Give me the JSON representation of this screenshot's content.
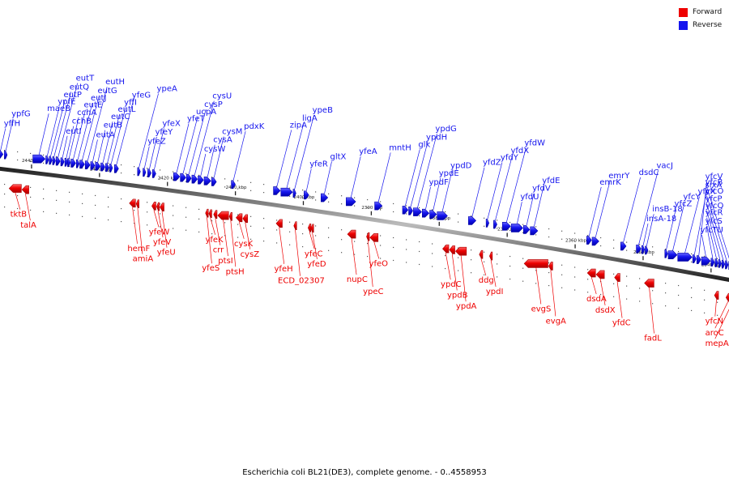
{
  "legend": {
    "forward": {
      "label": "Forward",
      "color": "#ee0000"
    },
    "reverse": {
      "label": "Reverse",
      "color": "#1515ee"
    }
  },
  "caption": "Escherichia coli BL21(DE3), complete genome. - 0..4558953",
  "scale": {
    "start_kbp": 2445,
    "end_kbp": 2337,
    "unit": "kbp"
  },
  "ticks": [
    {
      "kbp": 2440,
      "label": "2440 kbp"
    },
    {
      "kbp": 2430,
      "label": "2430 kbp"
    },
    {
      "kbp": 2420,
      "label": "2420 kbp"
    },
    {
      "kbp": 2410,
      "label": "2410 kbp"
    },
    {
      "kbp": 2400,
      "label": "2400 kbp"
    },
    {
      "kbp": 2390,
      "label": "2390 kbp"
    },
    {
      "kbp": 2380,
      "label": "2380 kbp"
    },
    {
      "kbp": 2370,
      "label": "2370 kbp"
    },
    {
      "kbp": 2360,
      "label": "2360 kbp"
    },
    {
      "kbp": 2350,
      "label": "2350 kbp"
    },
    {
      "kbp": 2340,
      "label": "2340 kbp"
    }
  ],
  "reverse_genes": [
    {
      "name": "yffH",
      "start": 2444.9,
      "end": 2444.2
    },
    {
      "name": "ypfG",
      "start": 2444.0,
      "end": 2443.6
    },
    {
      "name": "maeB",
      "start": 2439.8,
      "end": 2438.0
    },
    {
      "name": "ypfE",
      "start": 2437.9,
      "end": 2437.5
    },
    {
      "name": "eutP",
      "start": 2437.4,
      "end": 2437.0
    },
    {
      "name": "eutQ",
      "start": 2436.9,
      "end": 2436.5
    },
    {
      "name": "eutT",
      "start": 2436.4,
      "end": 2435.8
    },
    {
      "name": "eutI",
      "start": 2435.7,
      "end": 2435.2
    },
    {
      "name": "cchB",
      "start": 2435.1,
      "end": 2434.8
    },
    {
      "name": "cchA",
      "start": 2434.7,
      "end": 2434.3
    },
    {
      "name": "eutE",
      "start": 2434.2,
      "end": 2433.5
    },
    {
      "name": "eutJ",
      "start": 2433.4,
      "end": 2433.0
    },
    {
      "name": "eutG",
      "start": 2432.9,
      "end": 2432.2
    },
    {
      "name": "eutH",
      "start": 2432.1,
      "end": 2431.4
    },
    {
      "name": "eutA",
      "start": 2431.3,
      "end": 2430.7
    },
    {
      "name": "eutB",
      "start": 2430.6,
      "end": 2429.9
    },
    {
      "name": "eutC",
      "start": 2429.8,
      "end": 2429.2
    },
    {
      "name": "eutL",
      "start": 2429.1,
      "end": 2428.6
    },
    {
      "name": "yffI",
      "start": 2428.5,
      "end": 2428.1
    },
    {
      "name": "yfeG",
      "start": 2427.8,
      "end": 2427.2
    },
    {
      "name": "ypeA",
      "start": 2424.4,
      "end": 2424.0
    },
    {
      "name": "yfeZ",
      "start": 2423.6,
      "end": 2423.2
    },
    {
      "name": "yfeY",
      "start": 2422.9,
      "end": 2422.4
    },
    {
      "name": "yfeX",
      "start": 2422.2,
      "end": 2421.7
    },
    {
      "name": "yfeT",
      "start": 2419.1,
      "end": 2418.2
    },
    {
      "name": "ucpA",
      "start": 2418.1,
      "end": 2417.3
    },
    {
      "name": "cysP",
      "start": 2417.2,
      "end": 2416.5
    },
    {
      "name": "cysU",
      "start": 2416.4,
      "end": 2415.6
    },
    {
      "name": "cysW",
      "start": 2415.5,
      "end": 2414.7
    },
    {
      "name": "cysA",
      "start": 2414.6,
      "end": 2413.6
    },
    {
      "name": "cysM",
      "start": 2413.5,
      "end": 2412.8
    },
    {
      "name": "pdxK",
      "start": 2410.6,
      "end": 2410.0
    },
    {
      "name": "zipA",
      "start": 2404.4,
      "end": 2403.4
    },
    {
      "name": "ligA",
      "start": 2403.3,
      "end": 2401.6
    },
    {
      "name": "ypeB",
      "start": 2401.5,
      "end": 2401.1
    },
    {
      "name": "yfeR",
      "start": 2399.9,
      "end": 2399.2
    },
    {
      "name": "gltX",
      "start": 2397.4,
      "end": 2396.4
    },
    {
      "name": "yfeA",
      "start": 2393.7,
      "end": 2392.3
    },
    {
      "name": "mntH",
      "start": 2389.5,
      "end": 2388.4
    },
    {
      "name": "glk",
      "start": 2385.4,
      "end": 2384.6
    },
    {
      "name": "ypdH",
      "start": 2384.5,
      "end": 2383.9
    },
    {
      "name": "ypdG",
      "start": 2383.8,
      "end": 2382.6
    },
    {
      "name": "ypdF",
      "start": 2382.5,
      "end": 2381.5
    },
    {
      "name": "ypdE",
      "start": 2381.4,
      "end": 2380.4
    },
    {
      "name": "ypdD",
      "start": 2380.3,
      "end": 2378.8
    },
    {
      "name": "yfdZ",
      "start": 2375.7,
      "end": 2374.6
    },
    {
      "name": "yfdY",
      "start": 2373.1,
      "end": 2372.8
    },
    {
      "name": "yfdX",
      "start": 2372.0,
      "end": 2371.5
    },
    {
      "name": "yfdW",
      "start": 2370.7,
      "end": 2369.5
    },
    {
      "name": "yfdU",
      "start": 2369.4,
      "end": 2367.7
    },
    {
      "name": "yfdV",
      "start": 2367.6,
      "end": 2366.7
    },
    {
      "name": "yfdE",
      "start": 2366.6,
      "end": 2365.5
    },
    {
      "name": "emrK",
      "start": 2358.3,
      "end": 2357.6
    },
    {
      "name": "emrY",
      "start": 2357.5,
      "end": 2356.5
    },
    {
      "name": "dsdC",
      "start": 2353.3,
      "end": 2352.5
    },
    {
      "name": "vacJ",
      "start": 2351.0,
      "end": 2350.3
    },
    {
      "name": "insA-18",
      "start": 2350.2,
      "end": 2349.8
    },
    {
      "name": "insB-18",
      "start": 2349.7,
      "end": 2349.3
    },
    {
      "name": "yfcZ",
      "start": 2346.8,
      "end": 2346.4
    },
    {
      "name": "yfcY",
      "start": 2346.3,
      "end": 2345.0
    },
    {
      "name": "yfcX",
      "start": 2344.9,
      "end": 2342.8
    },
    {
      "name": "sixA",
      "start": 2342.7,
      "end": 2342.2
    },
    {
      "name": "yfcV",
      "start": 2342.1,
      "end": 2341.5
    },
    {
      "name": "yfcTU",
      "start": 2341.4,
      "end": 2340.1
    },
    {
      "name": "yfcS",
      "start": 2340.0,
      "end": 2339.5
    },
    {
      "name": "yfcR",
      "start": 2339.4,
      "end": 2339.0
    },
    {
      "name": "yfcQ",
      "start": 2338.9,
      "end": 2338.5
    },
    {
      "name": "yfcP",
      "start": 2338.4,
      "end": 2338.0
    },
    {
      "name": "yfcO",
      "start": 2337.9,
      "end": 2337.5
    },
    {
      "name": "yfcB",
      "start": 2337.4,
      "end": 2337.0
    }
  ],
  "forward_genes": [
    {
      "name": "tktB",
      "start": 2443.3,
      "end": 2441.5
    },
    {
      "name": "talA",
      "start": 2441.4,
      "end": 2440.4
    },
    {
      "name": "hemF",
      "start": 2425.6,
      "end": 2424.7
    },
    {
      "name": "amiA",
      "start": 2424.6,
      "end": 2424.3
    },
    {
      "name": "yfeW",
      "start": 2422.3,
      "end": 2421.7
    },
    {
      "name": "yfeV",
      "start": 2421.6,
      "end": 2421.2
    },
    {
      "name": "yfeU",
      "start": 2421.1,
      "end": 2420.5
    },
    {
      "name": "yfeS",
      "start": 2414.4,
      "end": 2414.1
    },
    {
      "name": "yfeK",
      "start": 2413.9,
      "end": 2413.6
    },
    {
      "name": "crr",
      "start": 2413.2,
      "end": 2412.7
    },
    {
      "name": "ptsI",
      "start": 2412.6,
      "end": 2411.0
    },
    {
      "name": "ptsH",
      "start": 2410.9,
      "end": 2410.6
    },
    {
      "name": "cysK",
      "start": 2409.9,
      "end": 2409.0
    },
    {
      "name": "cysZ",
      "start": 2408.9,
      "end": 2408.2
    },
    {
      "name": "yfeH",
      "start": 2404.0,
      "end": 2403.1
    },
    {
      "name": "ECD_02307",
      "start": 2401.4,
      "end": 2401.0
    },
    {
      "name": "yfeC",
      "start": 2399.3,
      "end": 2399.0
    },
    {
      "name": "yfeD",
      "start": 2398.9,
      "end": 2398.5
    },
    {
      "name": "nupC",
      "start": 2393.5,
      "end": 2392.3
    },
    {
      "name": "ypeC",
      "start": 2390.7,
      "end": 2390.3
    },
    {
      "name": "yfeO",
      "start": 2390.2,
      "end": 2389.0
    },
    {
      "name": "ypdC",
      "start": 2379.5,
      "end": 2378.6
    },
    {
      "name": "ypdB",
      "start": 2378.5,
      "end": 2377.7
    },
    {
      "name": "ypdA",
      "start": 2377.6,
      "end": 2376.0
    },
    {
      "name": "ddg",
      "start": 2374.1,
      "end": 2373.6
    },
    {
      "name": "ypdI",
      "start": 2372.6,
      "end": 2372.3
    },
    {
      "name": "evgS",
      "start": 2367.5,
      "end": 2364.0
    },
    {
      "name": "evgA",
      "start": 2363.9,
      "end": 2363.3
    },
    {
      "name": "dsdA",
      "start": 2358.2,
      "end": 2357.0
    },
    {
      "name": "dsdX",
      "start": 2356.9,
      "end": 2355.7
    },
    {
      "name": "yfdC",
      "start": 2354.2,
      "end": 2353.4
    },
    {
      "name": "fadL",
      "start": 2349.8,
      "end": 2348.4
    },
    {
      "name": "yfcN",
      "start": 2339.5,
      "end": 2338.9
    },
    {
      "name": "aroC",
      "start": 2337.8,
      "end": 2337.2
    },
    {
      "name": "mepA",
      "start": 2337.1,
      "end": 2336.6
    }
  ]
}
